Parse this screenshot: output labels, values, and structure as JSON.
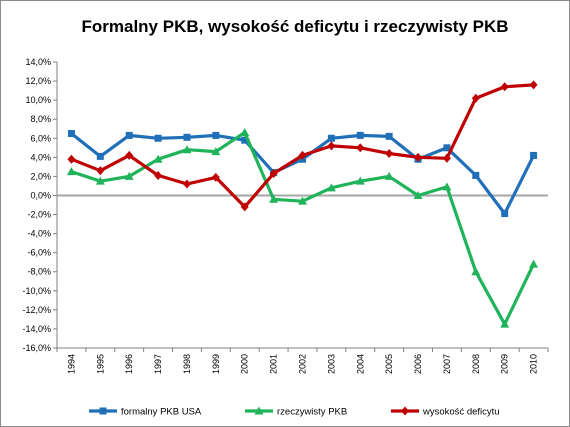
{
  "chart_data": {
    "type": "line",
    "title": "Formalny PKB, wysokość deficytu i rzeczywisty PKB",
    "xlabel": "",
    "ylabel": "",
    "categories": [
      "1994",
      "1995",
      "1996",
      "1997",
      "1998",
      "1999",
      "2000",
      "2001",
      "2002",
      "2003",
      "2004",
      "2005",
      "2006",
      "2007",
      "2008",
      "2009",
      "2010"
    ],
    "ylim": [
      -16,
      14
    ],
    "ytick_step": 2,
    "ytick_labels": [
      "14,0%",
      "12,0%",
      "10,0%",
      "8,0%",
      "6,0%",
      "4,0%",
      "2,0%",
      "0,0%",
      "-2,0%",
      "-4,0%",
      "-6,0%",
      "-8,0%",
      "-10,0%",
      "-12,0%",
      "-14,0%",
      "-16,0%"
    ],
    "grid": false,
    "legend_position": "bottom",
    "series": [
      {
        "name": "formalny PKB USA",
        "color": "#1f6fb9",
        "marker": "square",
        "values": [
          6.5,
          4.1,
          6.3,
          6.0,
          6.1,
          6.3,
          5.8,
          2.4,
          3.8,
          6.0,
          6.3,
          6.2,
          3.8,
          5.0,
          2.1,
          -1.9,
          4.2
        ]
      },
      {
        "name": "rzeczywisty PKB",
        "color": "#1fb35a",
        "marker": "triangle",
        "values": [
          2.5,
          1.5,
          2.0,
          3.8,
          4.8,
          4.6,
          6.6,
          -0.4,
          -0.6,
          0.8,
          1.5,
          2.0,
          0.0,
          0.9,
          -8.0,
          -13.5,
          -7.2
        ]
      },
      {
        "name": "wysokość deficytu",
        "color": "#c00000",
        "marker": "diamond",
        "values": [
          3.8,
          2.6,
          4.2,
          2.1,
          1.2,
          1.9,
          -1.2,
          2.3,
          4.2,
          5.2,
          5.0,
          4.4,
          4.0,
          3.9,
          10.2,
          11.4,
          11.6
        ]
      }
    ]
  },
  "colors": {
    "zero_line": "#a6a6a6",
    "axis": "#808080"
  }
}
